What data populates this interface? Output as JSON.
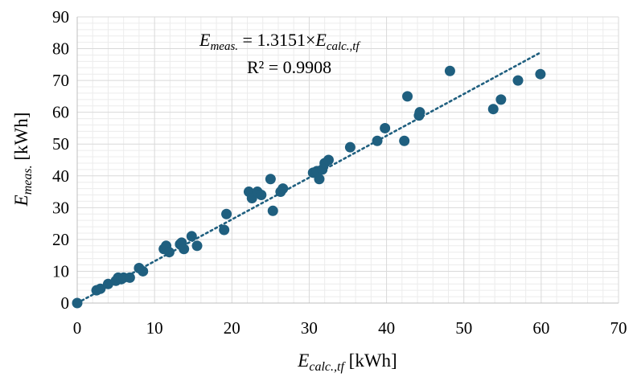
{
  "chart_data": {
    "type": "scatter",
    "x_axis": {
      "label": {
        "symbol": "E",
        "subscript": "calc.,tf",
        "unit": " [kWh]"
      },
      "min": 0,
      "max": 70,
      "major": 10,
      "minor": 2,
      "ticks": [
        "0",
        "10",
        "20",
        "30",
        "40",
        "50",
        "60",
        "70"
      ]
    },
    "y_axis": {
      "label": {
        "symbol": "E",
        "subscript": "meas.",
        "unit": " [kWh]"
      },
      "min": 0,
      "max": 90,
      "major": 10,
      "minor": 2,
      "ticks": [
        "0",
        "10",
        "20",
        "30",
        "40",
        "50",
        "60",
        "70",
        "80",
        "90"
      ]
    },
    "grid": true,
    "series": [
      {
        "color": "#1f5f7f",
        "points": [
          [
            0,
            0
          ],
          [
            2.5,
            4
          ],
          [
            3,
            4.5
          ],
          [
            4,
            6
          ],
          [
            5,
            7
          ],
          [
            5.3,
            8
          ],
          [
            5.7,
            7.5
          ],
          [
            6,
            8
          ],
          [
            6.8,
            8
          ],
          [
            8,
            11
          ],
          [
            8.5,
            10
          ],
          [
            11.2,
            17
          ],
          [
            11.5,
            18
          ],
          [
            11.9,
            16
          ],
          [
            13.3,
            18.5
          ],
          [
            13.5,
            19
          ],
          [
            13.8,
            17
          ],
          [
            14.8,
            21
          ],
          [
            15.5,
            18
          ],
          [
            19,
            23
          ],
          [
            19.3,
            28
          ],
          [
            22.2,
            35
          ],
          [
            22.6,
            33
          ],
          [
            23.3,
            35
          ],
          [
            23.8,
            34
          ],
          [
            25,
            39
          ],
          [
            25.3,
            29
          ],
          [
            26.3,
            35
          ],
          [
            26.6,
            36
          ],
          [
            30.5,
            41
          ],
          [
            31,
            41.5
          ],
          [
            31.3,
            39
          ],
          [
            31.7,
            42
          ],
          [
            32,
            44
          ],
          [
            32.5,
            45
          ],
          [
            35.3,
            49
          ],
          [
            38.8,
            51
          ],
          [
            39.8,
            55
          ],
          [
            42.3,
            51
          ],
          [
            42.7,
            65
          ],
          [
            44.2,
            59
          ],
          [
            44.3,
            60
          ],
          [
            48.2,
            73
          ],
          [
            53.8,
            61
          ],
          [
            54.8,
            64
          ],
          [
            57,
            70
          ],
          [
            59.9,
            72
          ]
        ]
      }
    ],
    "trendline": {
      "type": "linear",
      "slope": 1.3151,
      "x_end": 59.9,
      "color": "#1f5f7f",
      "style": "dotted"
    },
    "annotations": {
      "equation": {
        "lhs_symbol": "E",
        "lhs_sub": "meas.",
        "middle": " = 1.3151×",
        "rhs_symbol": "E",
        "rhs_sub": "calc.,tf"
      },
      "r2": "R² = 0.9908"
    }
  }
}
